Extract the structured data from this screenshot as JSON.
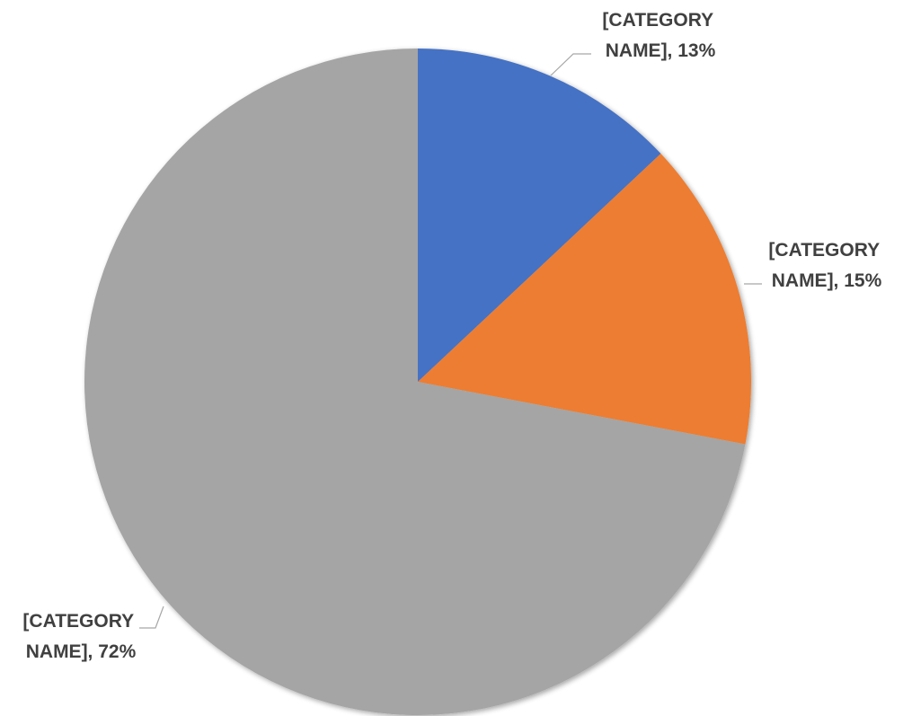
{
  "chart_data": {
    "type": "pie",
    "title": "",
    "categories": [
      "[CATEGORY NAME]",
      "[CATEGORY NAME]",
      "[CATEGORY NAME]"
    ],
    "values": [
      13,
      15,
      72
    ],
    "colors": [
      "#4472c4",
      "#ed7d31",
      "#a5a5a5"
    ],
    "data_labels": [
      {
        "line1": "[CATEGORY",
        "line2": "NAME], 13%"
      },
      {
        "line1": "[CATEGORY",
        "line2": "NAME], 15%"
      },
      {
        "line1": "[CATEGORY",
        "line2": "NAME], 72%"
      }
    ],
    "start_angle": "12 o'clock",
    "direction": "clockwise",
    "legend": "none"
  }
}
